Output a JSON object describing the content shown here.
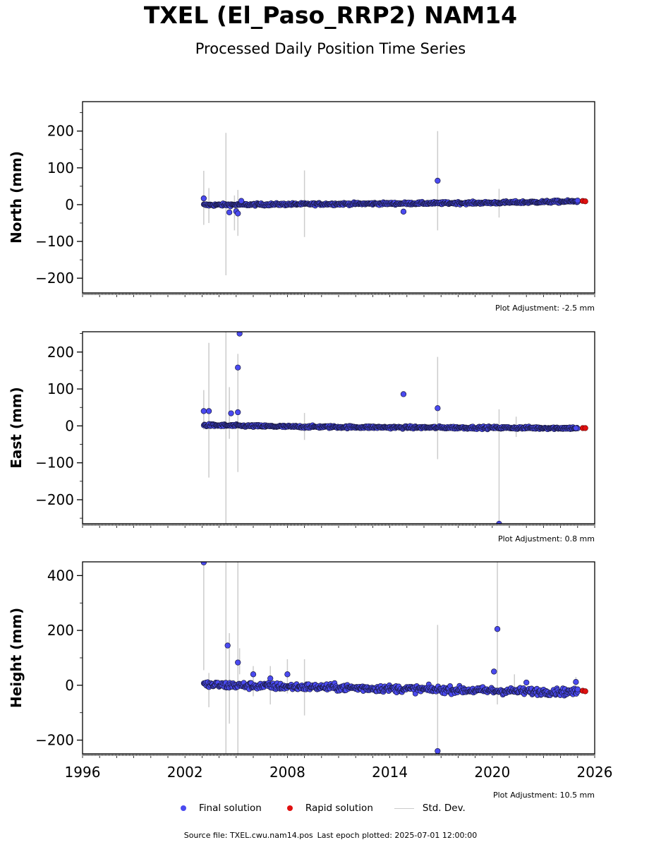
{
  "header": {
    "title": "TXEL (El_Paso_RRP2) NAM14",
    "subtitle": "Processed Daily Position Time Series"
  },
  "footer": {
    "source_label": "Source file: TXEL.cwu.nam14.pos",
    "last_epoch_label": "Last epoch plotted: 2025-07-01 12:00:00"
  },
  "legend": {
    "final_label": "Final solution",
    "rapid_label": "Rapid solution",
    "stddev_label": "Std. Dev."
  },
  "colors": {
    "final": "#4a4af0",
    "final_edge": "#1a1a40",
    "rapid": "#e01010",
    "stddev": "#cccccc"
  },
  "chart_data": [
    {
      "type": "scatter",
      "panel": "north",
      "ylabel": "North (mm)",
      "ylim": [
        -240,
        280
      ],
      "xlim": [
        1996,
        2026
      ],
      "yticks": [
        -200,
        -100,
        0,
        100,
        200
      ],
      "ytick_labels": [
        "−200",
        "−100",
        "0",
        "100",
        "200"
      ],
      "adjustment": "Plot Adjustment: -2.5 mm",
      "trend": [
        [
          2003.1,
          -1
        ],
        [
          2008,
          1
        ],
        [
          2014,
          3
        ],
        [
          2020,
          5
        ],
        [
          2025.0,
          9
        ]
      ],
      "noise": 2.5,
      "errorbars": [
        [
          2003.1,
          -55,
          92
        ],
        [
          2003.4,
          -50,
          45
        ],
        [
          2004.4,
          -192,
          195
        ],
        [
          2004.9,
          -70,
          25
        ],
        [
          2005.1,
          -85,
          40
        ],
        [
          2009.0,
          -88,
          93
        ],
        [
          2016.8,
          -70,
          200
        ],
        [
          2020.4,
          -35,
          43
        ]
      ],
      "outliers": [
        [
          2003.1,
          17
        ],
        [
          2004.6,
          -21
        ],
        [
          2005.0,
          -18
        ],
        [
          2005.1,
          -24
        ],
        [
          2005.3,
          10
        ],
        [
          2014.8,
          -19
        ],
        [
          2016.8,
          65
        ],
        [
          2025.0,
          11
        ]
      ],
      "rapid": [
        [
          2025.3,
          10
        ],
        [
          2025.45,
          9
        ]
      ]
    },
    {
      "type": "scatter",
      "panel": "east",
      "ylabel": "East (mm)",
      "ylim": [
        -265,
        255
      ],
      "xlim": [
        1996,
        2026
      ],
      "yticks": [
        -200,
        -100,
        0,
        100,
        200
      ],
      "ytick_labels": [
        "−200",
        "−100",
        "0",
        "100",
        "200"
      ],
      "adjustment": "Plot Adjustment: 0.8 mm",
      "trend": [
        [
          2003.1,
          2
        ],
        [
          2008,
          -2
        ],
        [
          2014,
          -4
        ],
        [
          2020,
          -5
        ],
        [
          2025.0,
          -6
        ]
      ],
      "noise": 2.5,
      "errorbars": [
        [
          2003.1,
          -10,
          97
        ],
        [
          2003.4,
          -140,
          225
        ],
        [
          2004.4,
          -265,
          255
        ],
        [
          2004.6,
          -35,
          105
        ],
        [
          2005.1,
          -125,
          195
        ],
        [
          2009.0,
          -38,
          35
        ],
        [
          2016.8,
          -90,
          187
        ],
        [
          2020.4,
          -265,
          45
        ],
        [
          2021.4,
          -30,
          25
        ]
      ],
      "outliers": [
        [
          2003.1,
          40
        ],
        [
          2003.4,
          40
        ],
        [
          2004.7,
          34
        ],
        [
          2005.1,
          37
        ],
        [
          2005.1,
          158
        ],
        [
          2005.2,
          250
        ],
        [
          2014.8,
          86
        ],
        [
          2016.8,
          48
        ],
        [
          2020.4,
          -265
        ],
        [
          2024.9,
          -6
        ]
      ],
      "rapid": [
        [
          2025.3,
          -6
        ],
        [
          2025.45,
          -6
        ]
      ]
    },
    {
      "type": "scatter",
      "panel": "height",
      "ylabel": "Height (mm)",
      "ylim": [
        -250,
        450
      ],
      "xlim": [
        1996,
        2026
      ],
      "xticks": [
        1996,
        2002,
        2008,
        2014,
        2020,
        2026
      ],
      "yticks": [
        -200,
        0,
        200,
        400
      ],
      "ytick_labels": [
        "−200",
        "0",
        "200",
        "400"
      ],
      "adjustment": "Plot Adjustment: 10.5 mm",
      "trend": [
        [
          2003.1,
          2
        ],
        [
          2008,
          -5
        ],
        [
          2014,
          -12
        ],
        [
          2020,
          -20
        ],
        [
          2025.0,
          -25
        ]
      ],
      "noise": 9,
      "errorbars": [
        [
          2003.1,
          55,
          450
        ],
        [
          2003.4,
          -80,
          45
        ],
        [
          2004.4,
          -250,
          450
        ],
        [
          2004.6,
          -140,
          190
        ],
        [
          2005.1,
          -250,
          450
        ],
        [
          2005.2,
          40,
          135
        ],
        [
          2006.0,
          -40,
          70
        ],
        [
          2007.0,
          -70,
          70
        ],
        [
          2008.0,
          -30,
          95
        ],
        [
          2009.0,
          -110,
          95
        ],
        [
          2016.8,
          -250,
          220
        ],
        [
          2020.3,
          -70,
          450
        ],
        [
          2021.3,
          -30,
          40
        ],
        [
          2024.9,
          -20,
          30
        ]
      ],
      "outliers": [
        [
          2003.1,
          448
        ],
        [
          2004.5,
          145
        ],
        [
          2005.1,
          83
        ],
        [
          2006.0,
          40
        ],
        [
          2007.0,
          25
        ],
        [
          2008.0,
          40
        ],
        [
          2016.8,
          -240
        ],
        [
          2020.1,
          50
        ],
        [
          2020.3,
          205
        ],
        [
          2022.0,
          10
        ],
        [
          2024.9,
          12
        ],
        [
          2025.0,
          -15
        ]
      ],
      "rapid": [
        [
          2025.3,
          -20
        ],
        [
          2025.45,
          -22
        ]
      ]
    }
  ]
}
